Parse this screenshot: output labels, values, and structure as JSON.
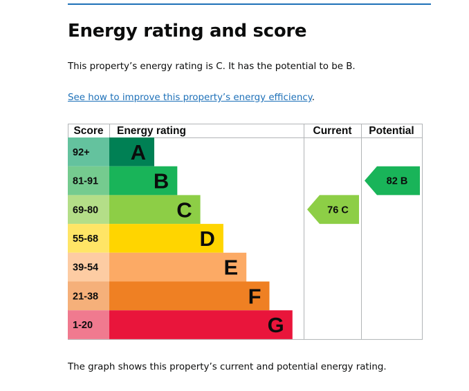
{
  "page": {
    "heading": "Energy rating and score",
    "summary": "This property’s energy rating is C. It has the potential to be B.",
    "improve_link": "See how to improve this property’s energy efficiency",
    "improve_link_suffix": ".",
    "caption": "The graph shows this property’s current and potential energy rating."
  },
  "chart_data": {
    "type": "table",
    "headers": {
      "score": "Score",
      "rating": "Energy rating",
      "current": "Current",
      "potential": "Potential"
    },
    "bands": [
      {
        "letter": "A",
        "range": "92+",
        "color": "#008054",
        "score_color": "#64c29e"
      },
      {
        "letter": "B",
        "range": "81-91",
        "color": "#19b459",
        "score_color": "#75cb8f"
      },
      {
        "letter": "C",
        "range": "69-80",
        "color": "#8dce46",
        "score_color": "#b4de88"
      },
      {
        "letter": "D",
        "range": "55-68",
        "color": "#ffd500",
        "score_color": "#ffe566"
      },
      {
        "letter": "E",
        "range": "39-54",
        "color": "#fcaa65",
        "score_color": "#fdcca3"
      },
      {
        "letter": "F",
        "range": "21-38",
        "color": "#ef8023",
        "score_color": "#f5b07a"
      },
      {
        "letter": "G",
        "range": "1-20",
        "color": "#e9153b",
        "score_color": "#f07a8f"
      }
    ],
    "current": {
      "score": 76,
      "letter": "C",
      "label": "76  C",
      "color": "#8dce46"
    },
    "potential": {
      "score": 82,
      "letter": "B",
      "label": "82  B",
      "color": "#19b459"
    }
  }
}
